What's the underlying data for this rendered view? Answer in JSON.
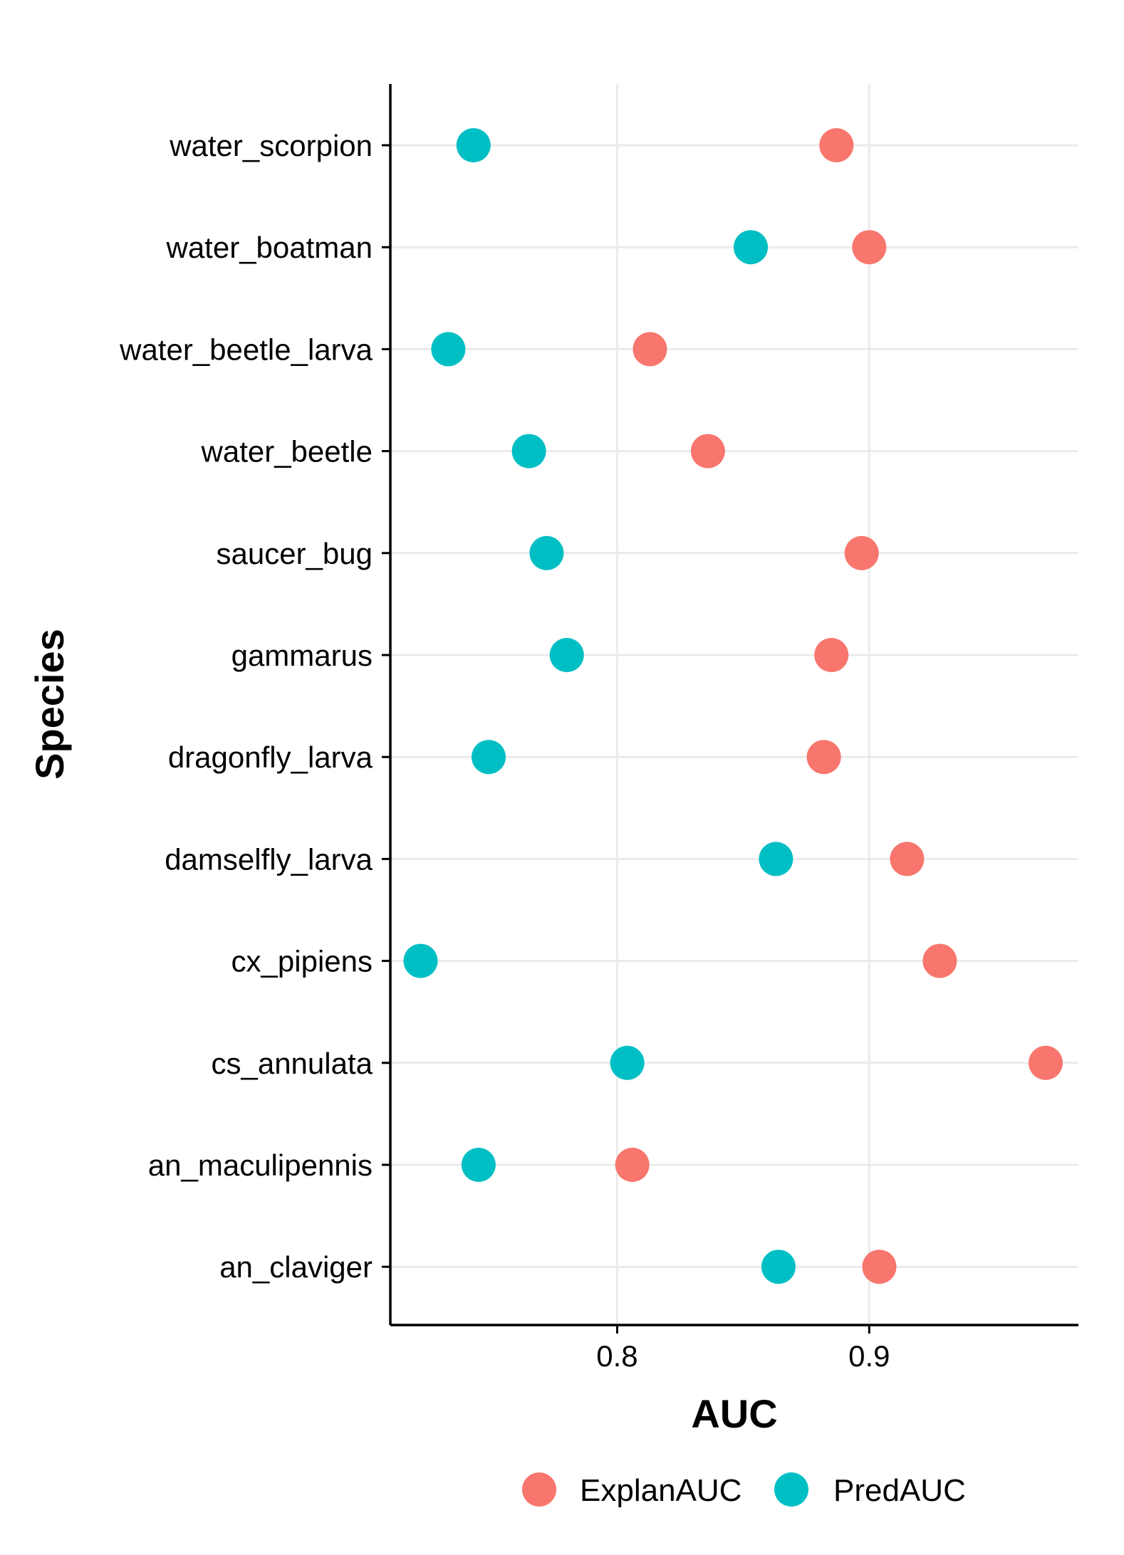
{
  "chart_data": {
    "type": "scatter",
    "title": "",
    "xlabel": "AUC",
    "ylabel": "Species",
    "xlim": [
      0.71,
      0.983
    ],
    "x_ticks": [
      0.8,
      0.9
    ],
    "x_tick_labels": [
      "0.8",
      "0.9"
    ],
    "grid": true,
    "legend_position": "bottom",
    "categories": [
      "water_scorpion",
      "water_boatman",
      "water_beetle_larva",
      "water_beetle",
      "saucer_bug",
      "gammarus",
      "dragonfly_larva",
      "damselfly_larva",
      "cx_pipiens",
      "cs_annulata",
      "an_maculipennis",
      "an_claviger"
    ],
    "series": [
      {
        "name": "ExplanAUC",
        "color": "#F8766D",
        "values": [
          0.887,
          0.9,
          0.813,
          0.836,
          0.897,
          0.885,
          0.882,
          0.915,
          0.928,
          0.97,
          0.806,
          0.904
        ]
      },
      {
        "name": "PredAUC",
        "color": "#00BFC4",
        "values": [
          0.743,
          0.853,
          0.733,
          0.765,
          0.772,
          0.78,
          0.749,
          0.863,
          0.722,
          0.804,
          0.745,
          0.864
        ]
      }
    ]
  }
}
